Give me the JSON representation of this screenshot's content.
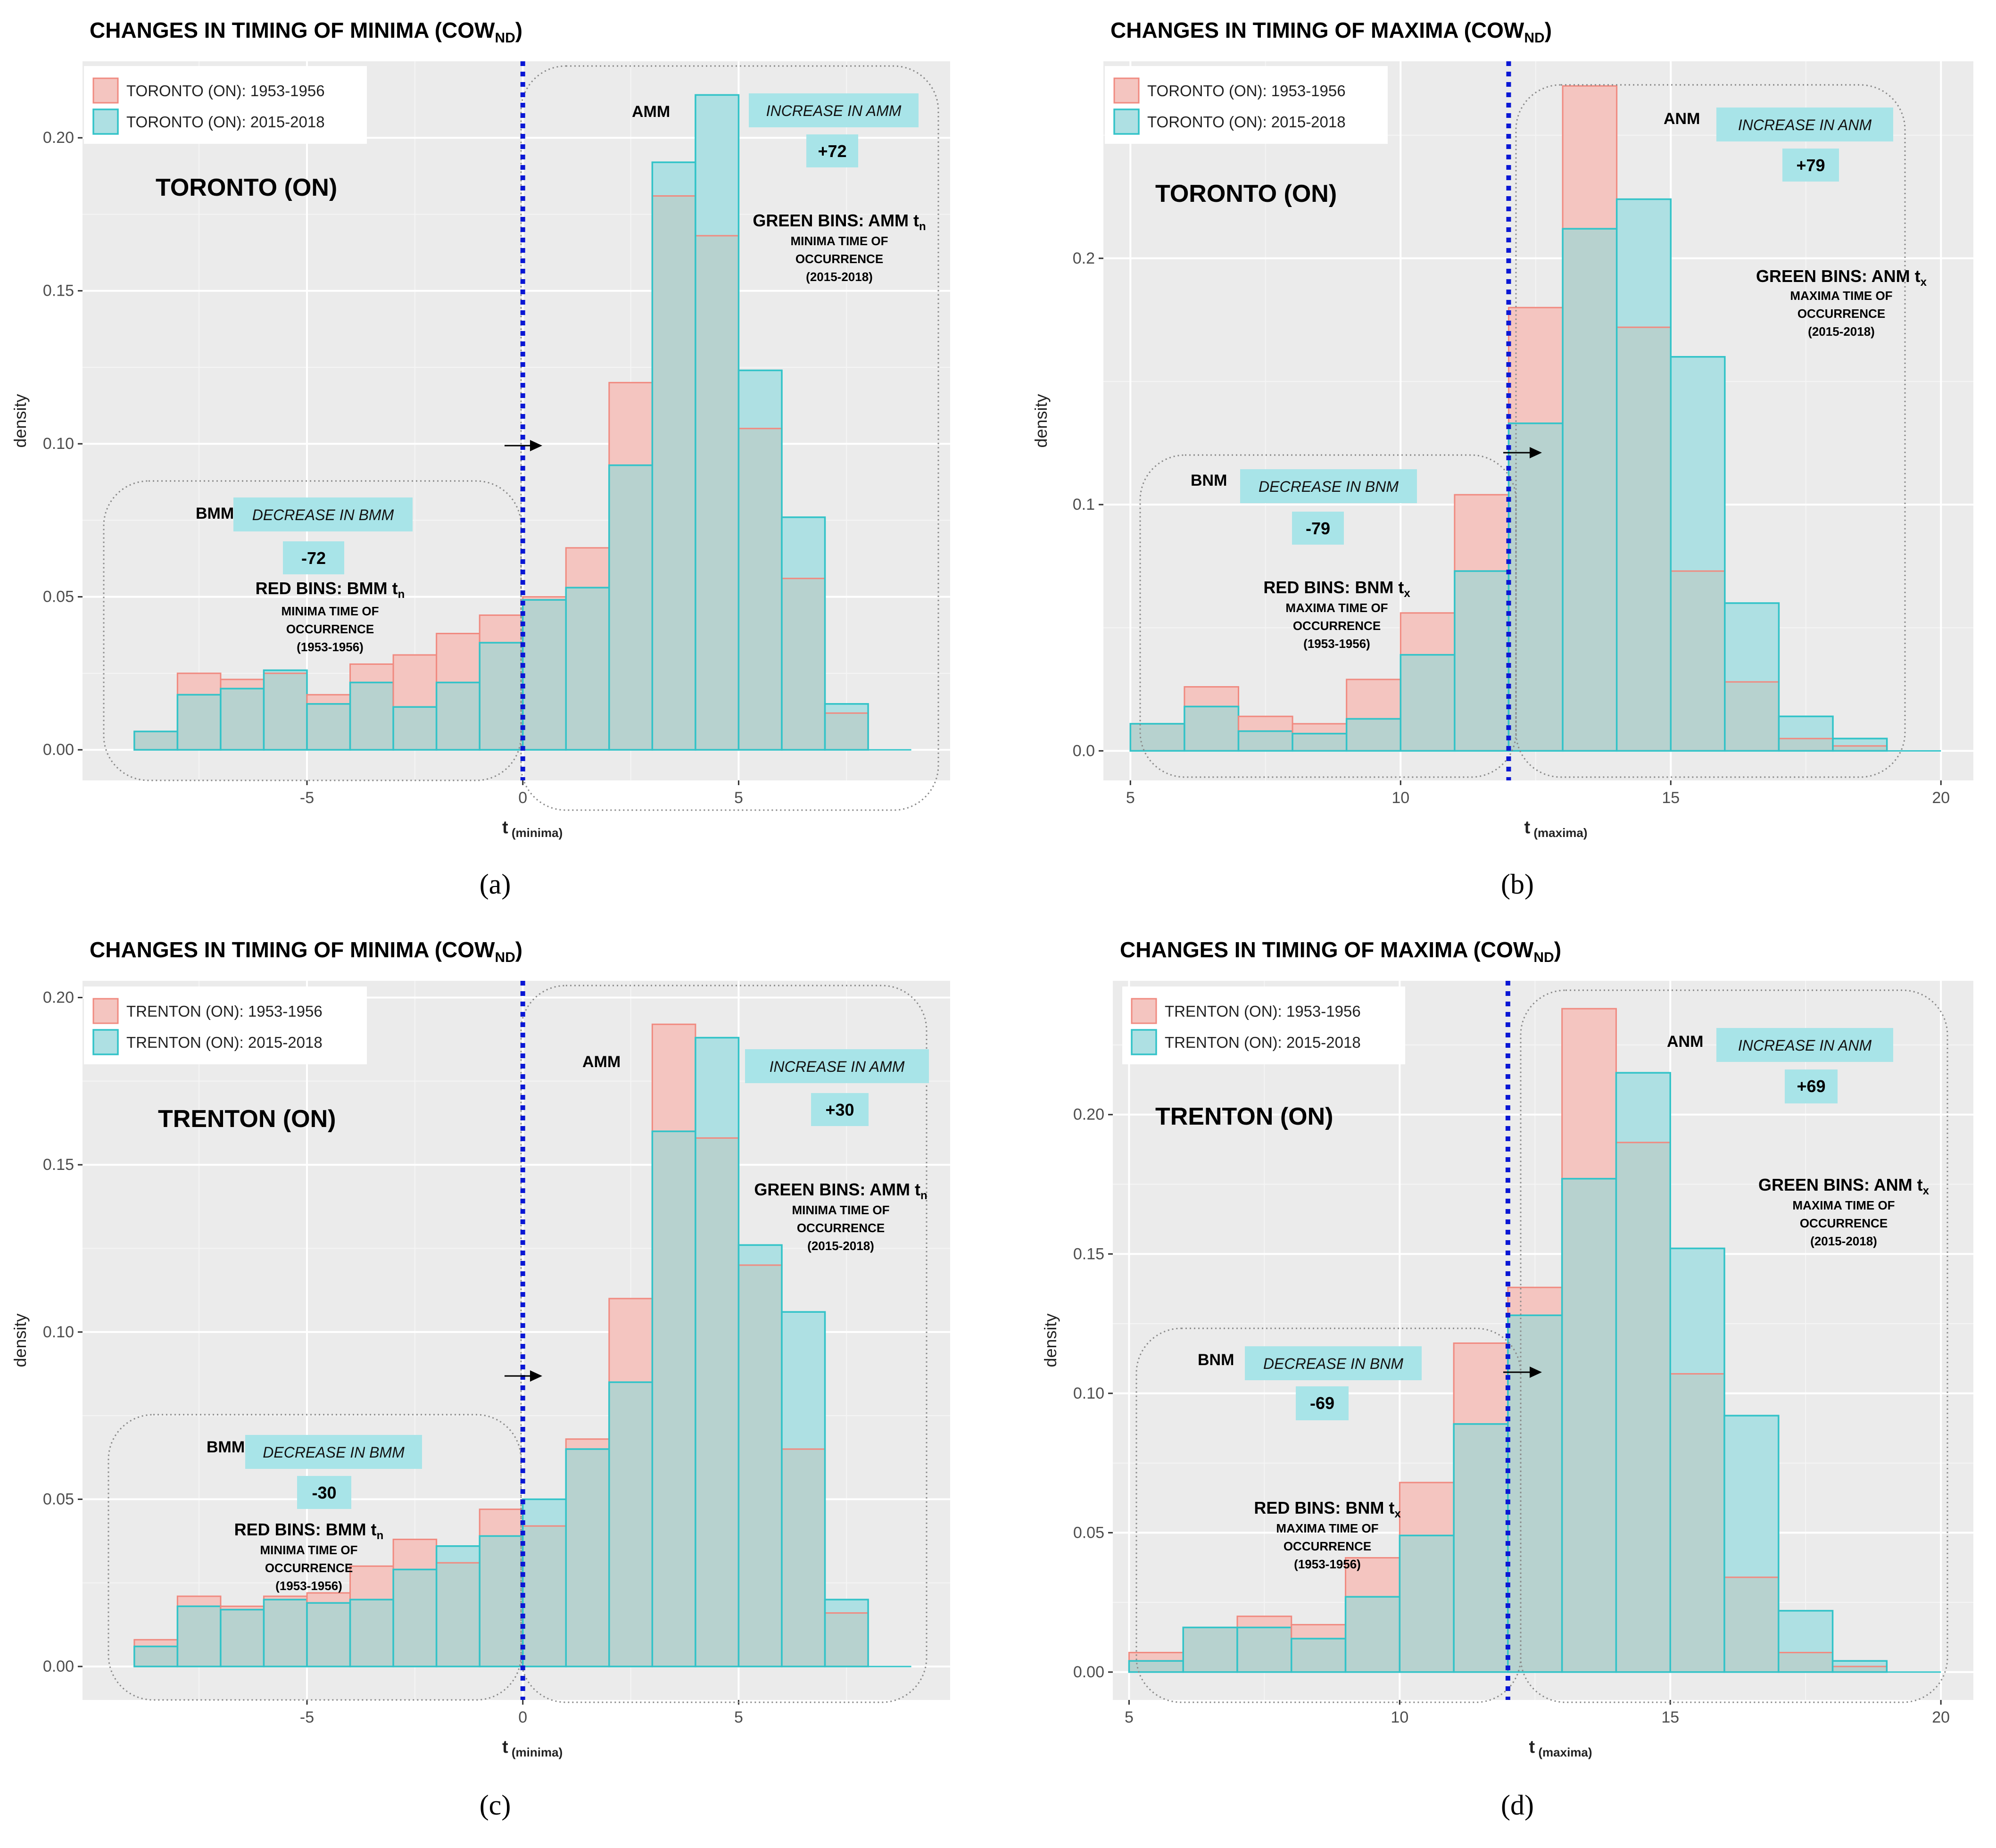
{
  "charts": [
    {
      "id": "a",
      "panel_label": "(a)",
      "title_main": "CHANGES IN TIMING OF MINIMA (COW",
      "title_sub": "ND",
      "title_end": ")",
      "station_title": "TORONTO (ON)",
      "legend": [
        "TORONTO (ON): 1953-1956",
        "TORONTO (ON): 2015-2018"
      ],
      "ylabel": "density",
      "xlabel_main": "t",
      "xlabel_sub": "(minima)",
      "before_box": {
        "name": "BMM",
        "change_label": "DECREASE IN BMM",
        "change_value": "-72",
        "bins_title": "RED BINS: BMM t",
        "bins_title_sub": "n",
        "bins_lines": [
          "MINIMA TIME OF",
          "OCCURRENCE",
          "(1953-1956)"
        ]
      },
      "after_box": {
        "name": "AMM",
        "change_label": "INCREASE IN AMM",
        "change_value": "+72",
        "bins_title": "GREEN BINS: AMM t",
        "bins_title_sub": "n",
        "bins_lines": [
          "MINIMA TIME OF",
          "OCCURRENCE",
          "(2015-2018)"
        ]
      }
    },
    {
      "id": "b",
      "panel_label": "(b)",
      "title_main": "CHANGES IN TIMING OF MAXIMA (COW",
      "title_sub": "ND",
      "title_end": ")",
      "station_title": "TORONTO (ON)",
      "legend": [
        "TORONTO (ON): 1953-1956",
        "TORONTO (ON): 2015-2018"
      ],
      "ylabel": "density",
      "xlabel_main": "t",
      "xlabel_sub": "(maxima)",
      "before_box": {
        "name": "BNM",
        "change_label": "DECREASE IN BNM",
        "change_value": "-79",
        "bins_title": "RED BINS: BNM t",
        "bins_title_sub": "x",
        "bins_lines": [
          "MAXIMA TIME OF",
          "OCCURRENCE",
          "(1953-1956)"
        ]
      },
      "after_box": {
        "name": "ANM",
        "change_label": "INCREASE IN ANM",
        "change_value": "+79",
        "bins_title": "GREEN BINS: ANM t",
        "bins_title_sub": "x",
        "bins_lines": [
          "MAXIMA TIME OF",
          "OCCURRENCE",
          "(2015-2018)"
        ]
      }
    },
    {
      "id": "c",
      "panel_label": "(c)",
      "title_main": "CHANGES IN TIMING OF MINIMA (COW",
      "title_sub": "ND",
      "title_end": ")",
      "station_title": "TRENTON (ON)",
      "legend": [
        "TRENTON (ON): 1953-1956",
        "TRENTON (ON): 2015-2018"
      ],
      "ylabel": "density",
      "xlabel_main": "t",
      "xlabel_sub": "(minima)",
      "before_box": {
        "name": "BMM",
        "change_label": "DECREASE IN BMM",
        "change_value": "-30",
        "bins_title": "RED BINS: BMM t",
        "bins_title_sub": "n",
        "bins_lines": [
          "MINIMA TIME OF",
          "OCCURRENCE",
          "(1953-1956)"
        ]
      },
      "after_box": {
        "name": "AMM",
        "change_label": "INCREASE IN AMM",
        "change_value": "+30",
        "bins_title": "GREEN BINS: AMM t",
        "bins_title_sub": "n",
        "bins_lines": [
          "MINIMA TIME OF",
          "OCCURRENCE",
          "(2015-2018)"
        ]
      }
    },
    {
      "id": "d",
      "panel_label": "(d)",
      "title_main": "CHANGES IN TIMING OF MAXIMA (COW",
      "title_sub": "ND",
      "title_end": ")",
      "station_title": "TRENTON (ON)",
      "legend": [
        "TRENTON (ON): 1953-1956",
        "TRENTON (ON): 2015-2018"
      ],
      "ylabel": "density",
      "xlabel_main": "t",
      "xlabel_sub": "(maxima)",
      "before_box": {
        "name": "BNM",
        "change_label": "DECREASE IN BNM",
        "change_value": "-69",
        "bins_title": "RED BINS: BNM t",
        "bins_title_sub": "x",
        "bins_lines": [
          "MAXIMA TIME OF",
          "OCCURRENCE",
          "(1953-1956)"
        ]
      },
      "after_box": {
        "name": "ANM",
        "change_label": "INCREASE IN ANM",
        "change_value": "+69",
        "bins_title": "GREEN BINS: ANM t",
        "bins_title_sub": "x",
        "bins_lines": [
          "MAXIMA TIME OF",
          "OCCURRENCE",
          "(2015-2018)"
        ]
      }
    }
  ],
  "colors": {
    "panel_bg": "#ebebeb",
    "grid_major": "#ffffff",
    "red_fill": "#f4c5c0",
    "red_edge": "#f08a80",
    "cyan_fill": "#aee0e3",
    "cyan_edge": "#33c3c8",
    "overlap_fill": "#b7d2cf",
    "divider": "#0a17d4",
    "axis_text": "#4d4d4d",
    "title_text": "#000000",
    "callout_bg": "#a8e4e8"
  },
  "chart_data": [
    {
      "type": "histogram",
      "title": "CHANGES IN TIMING OF MINIMA (COW_ND) — TORONTO (ON)",
      "xlabel": "t (minima)",
      "ylabel": "density",
      "xlim": [
        -10.2,
        9.9
      ],
      "ylim": [
        -0.01,
        0.225
      ],
      "xticks": [
        -5,
        0,
        5
      ],
      "xtick_labels": [
        "-5",
        "0",
        "5"
      ],
      "yticks": [
        0,
        0.05,
        0.1,
        0.15,
        0.2
      ],
      "ytick_labels": [
        "0.00",
        "0.05",
        "0.10",
        "0.15",
        "0.20"
      ],
      "divider_x": 0,
      "bin_edges": [
        -9,
        -8,
        -7,
        -6,
        -5,
        -4,
        -3,
        -2,
        -1,
        0,
        1,
        2,
        3,
        4,
        5,
        6,
        7,
        8,
        9
      ],
      "series": [
        {
          "name": "TORONTO (ON): 1953-1956",
          "values": [
            0.006,
            0.025,
            0.023,
            0.025,
            0.018,
            0.028,
            0.031,
            0.038,
            0.044,
            0.05,
            0.066,
            0.12,
            0.181,
            0.168,
            0.105,
            0.056,
            0.012,
            0
          ]
        },
        {
          "name": "TORONTO (ON): 2015-2018",
          "values": [
            0.006,
            0.018,
            0.02,
            0.026,
            0.015,
            0.022,
            0.014,
            0.022,
            0.035,
            0.049,
            0.053,
            0.093,
            0.192,
            0.214,
            0.124,
            0.076,
            0.015,
            0
          ]
        }
      ]
    },
    {
      "type": "histogram",
      "title": "CHANGES IN TIMING OF MAXIMA (COW_ND) — TORONTO (ON)",
      "xlabel": "t (maxima)",
      "ylabel": "density",
      "xlim": [
        4.5,
        20.6
      ],
      "ylim": [
        -0.012,
        0.28
      ],
      "xticks": [
        5,
        10,
        15,
        20
      ],
      "xtick_labels": [
        "5",
        "10",
        "15",
        "20"
      ],
      "yticks": [
        0,
        0.1,
        0.2
      ],
      "ytick_labels": [
        "0.0",
        "0.1",
        "0.2"
      ],
      "divider_x": 12,
      "bin_edges": [
        5,
        6,
        7,
        8,
        9,
        10,
        11,
        12,
        13,
        14,
        15,
        16,
        17,
        18,
        19,
        20
      ],
      "series": [
        {
          "name": "TORONTO (ON): 1953-1956",
          "values": [
            0.011,
            0.026,
            0.014,
            0.011,
            0.029,
            0.056,
            0.104,
            0.18,
            0.27,
            0.172,
            0.073,
            0.028,
            0.005,
            0.002,
            0
          ]
        },
        {
          "name": "TORONTO (ON): 2015-2018",
          "values": [
            0.011,
            0.018,
            0.008,
            0.007,
            0.013,
            0.039,
            0.073,
            0.133,
            0.212,
            0.224,
            0.16,
            0.06,
            0.014,
            0.005,
            0
          ]
        }
      ]
    },
    {
      "type": "histogram",
      "title": "CHANGES IN TIMING OF MINIMA (COW_ND) — TRENTON (ON)",
      "xlabel": "t (minima)",
      "ylabel": "density",
      "xlim": [
        -10.2,
        9.9
      ],
      "ylim": [
        -0.01,
        0.205
      ],
      "xticks": [
        -5,
        0,
        5
      ],
      "xtick_labels": [
        "-5",
        "0",
        "5"
      ],
      "yticks": [
        0,
        0.05,
        0.1,
        0.15,
        0.2
      ],
      "ytick_labels": [
        "0.00",
        "0.05",
        "0.10",
        "0.15",
        "0.20"
      ],
      "divider_x": 0,
      "bin_edges": [
        -9,
        -8,
        -7,
        -6,
        -5,
        -4,
        -3,
        -2,
        -1,
        0,
        1,
        2,
        3,
        4,
        5,
        6,
        7,
        8,
        9
      ],
      "series": [
        {
          "name": "TRENTON (ON): 1953-1956",
          "values": [
            0.008,
            0.021,
            0.018,
            0.021,
            0.022,
            0.03,
            0.038,
            0.031,
            0.047,
            0.042,
            0.068,
            0.11,
            0.192,
            0.158,
            0.12,
            0.065,
            0.016,
            0
          ]
        },
        {
          "name": "TRENTON (ON): 2015-2018",
          "values": [
            0.006,
            0.018,
            0.017,
            0.02,
            0.019,
            0.02,
            0.029,
            0.036,
            0.039,
            0.05,
            0.065,
            0.085,
            0.16,
            0.188,
            0.126,
            0.106,
            0.02,
            0
          ]
        }
      ]
    },
    {
      "type": "histogram",
      "title": "CHANGES IN TIMING OF MAXIMA (COW_ND) — TRENTON (ON)",
      "xlabel": "t (maxima)",
      "ylabel": "density",
      "xlim": [
        4.7,
        20.6
      ],
      "ylim": [
        -0.01,
        0.248
      ],
      "xticks": [
        5,
        10,
        15,
        20
      ],
      "xtick_labels": [
        "5",
        "10",
        "15",
        "20"
      ],
      "yticks": [
        0,
        0.05,
        0.1,
        0.15,
        0.2
      ],
      "ytick_labels": [
        "0.00",
        "0.05",
        "0.10",
        "0.15",
        "0.20"
      ],
      "divider_x": 12,
      "bin_edges": [
        5,
        6,
        7,
        8,
        9,
        10,
        11,
        12,
        13,
        14,
        15,
        16,
        17,
        18,
        19,
        20
      ],
      "series": [
        {
          "name": "TRENTON (ON): 1953-1956",
          "values": [
            0.007,
            0.016,
            0.02,
            0.017,
            0.041,
            0.068,
            0.118,
            0.138,
            0.238,
            0.19,
            0.107,
            0.034,
            0.007,
            0.002,
            0
          ]
        },
        {
          "name": "TRENTON (ON): 2015-2018",
          "values": [
            0.004,
            0.016,
            0.016,
            0.012,
            0.027,
            0.049,
            0.089,
            0.128,
            0.177,
            0.215,
            0.152,
            0.092,
            0.022,
            0.004,
            0
          ]
        }
      ]
    }
  ]
}
